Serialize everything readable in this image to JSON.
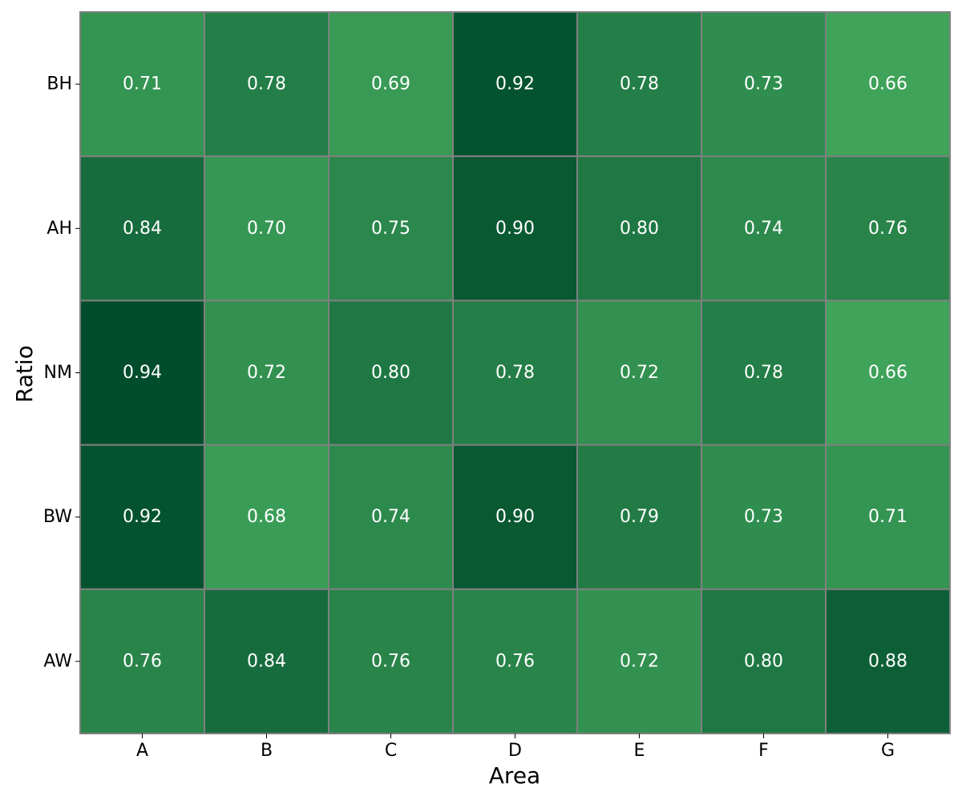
{
  "chart_data": {
    "type": "heatmap",
    "xlabel": "Area",
    "ylabel": "Ratio",
    "x_categories": [
      "A",
      "B",
      "C",
      "D",
      "E",
      "F",
      "G"
    ],
    "y_categories": [
      "BH",
      "AH",
      "NM",
      "BW",
      "AW"
    ],
    "values": [
      [
        0.71,
        0.78,
        0.69,
        0.92,
        0.78,
        0.73,
        0.66
      ],
      [
        0.84,
        0.7,
        0.75,
        0.9,
        0.8,
        0.74,
        0.76
      ],
      [
        0.94,
        0.72,
        0.8,
        0.78,
        0.72,
        0.78,
        0.66
      ],
      [
        0.92,
        0.68,
        0.74,
        0.9,
        0.79,
        0.73,
        0.71
      ],
      [
        0.76,
        0.84,
        0.76,
        0.76,
        0.72,
        0.8,
        0.88
      ]
    ],
    "value_format": "0.00",
    "colormap": "Greens",
    "color_range": [
      0.66,
      0.94
    ],
    "color_low": "#3fa35a",
    "color_high": "#004d2d",
    "cell_border_color": "#808080",
    "annotation_color": "#ffffff",
    "colorbar": false
  }
}
